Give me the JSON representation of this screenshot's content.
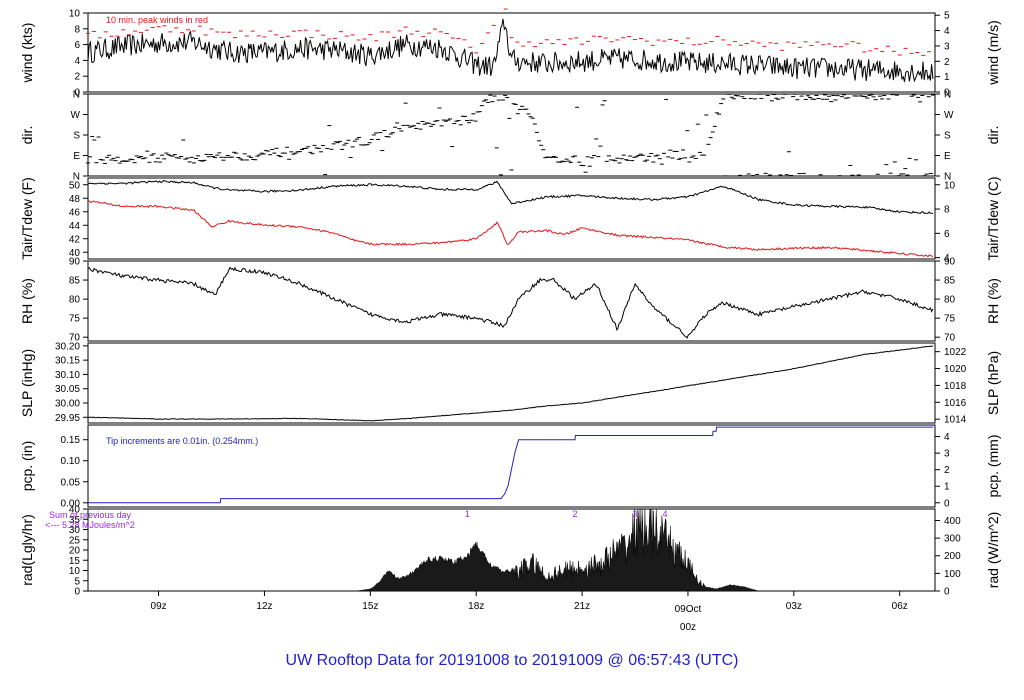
{
  "title": "UW Rooftop Data for 20191008  to  20191009 @ 06:57:43  (UTC)",
  "colors": {
    "black": "#000000",
    "red": "#e31a1c",
    "blue": "#2020c8",
    "purple": "#a020f0",
    "title": "#1f1fd0"
  },
  "time_axis": {
    "labels": [
      "09z",
      "12z",
      "15z",
      "18z",
      "21z",
      "09Oct",
      "03z",
      "06z"
    ],
    "label_positions_h": [
      2,
      5,
      8,
      11,
      14,
      17,
      20,
      23
    ],
    "day_label": "09Oct",
    "day_sublabel": "00z",
    "start": "2019-10-08 07:00 UTC",
    "end": "2019-10-09 06:57 UTC"
  },
  "chart_data": [
    {
      "id": "wind",
      "type": "line",
      "ylabel": "wind (kts)",
      "ylabel_right": "wind (m/s)",
      "ylim": [
        0,
        10
      ],
      "yticks": [
        "0",
        "2",
        "4",
        "6",
        "8",
        "10"
      ],
      "yticks_right": [
        "0",
        "1",
        "2",
        "3",
        "4",
        "5"
      ],
      "annotation": "10 min. peak winds in red",
      "series": [
        {
          "name": "wind",
          "color": "#000000",
          "x": [
            0,
            1,
            2,
            3,
            4,
            5,
            6,
            7,
            8,
            9,
            10,
            11,
            11.5,
            11.8,
            12,
            13,
            14,
            15,
            16,
            17,
            18,
            19,
            20,
            21,
            22,
            23,
            23.95
          ],
          "values": [
            5.0,
            5.8,
            6.2,
            6.3,
            5.0,
            5.0,
            5.5,
            5.3,
            4.6,
            6.0,
            5.6,
            3.4,
            3.2,
            9.0,
            4.0,
            3.6,
            3.9,
            4.2,
            4.0,
            3.7,
            3.6,
            3.4,
            3.0,
            3.0,
            2.8,
            2.7,
            2.5
          ]
        },
        {
          "name": "peak",
          "color": "#e31a1c",
          "x": [
            0,
            1,
            2,
            3,
            4,
            5,
            6,
            7,
            8,
            9,
            10,
            11,
            11.8,
            12,
            13,
            14,
            15,
            16,
            17,
            18,
            19,
            20,
            21,
            22,
            23,
            23.95
          ],
          "values": [
            7.0,
            7.6,
            8.0,
            8.1,
            7.2,
            7.4,
            7.5,
            7.2,
            6.8,
            7.8,
            7.4,
            5.4,
            10.5,
            6.5,
            6.2,
            6.4,
            6.8,
            6.5,
            6.3,
            6.5,
            6.0,
            5.8,
            6.2,
            5.6,
            5.0,
            5.2
          ]
        }
      ]
    },
    {
      "id": "dir",
      "type": "scatter",
      "ylabel": "dir.",
      "ylabel_right": "dir.",
      "ylim": [
        0,
        360
      ],
      "yticks": [
        "N",
        "E",
        "S",
        "W",
        "N"
      ],
      "yticks_right": [
        "N",
        "E",
        "S",
        "W",
        "N"
      ],
      "series": [
        {
          "name": "direction",
          "color": "#000000",
          "x": [
            0,
            0.5,
            1,
            1.5,
            2,
            2.5,
            3,
            3.5,
            4,
            4.5,
            5,
            5.5,
            6,
            6.5,
            7,
            7.5,
            8,
            8.5,
            9,
            9.5,
            10,
            10.5,
            11,
            11.3,
            11.6,
            11.9,
            12.2,
            12.5,
            13,
            13.5,
            14,
            14.5,
            15,
            15.5,
            16,
            16.5,
            17,
            17.5,
            18,
            18.5,
            19,
            19.5,
            20,
            20.5,
            21,
            21.5,
            22,
            22.5,
            23,
            23.5,
            23.9
          ],
          "values": [
            75,
            70,
            78,
            72,
            80,
            85,
            76,
            82,
            90,
            88,
            95,
            105,
            110,
            120,
            130,
            145,
            160,
            190,
            210,
            220,
            230,
            240,
            260,
            330,
            350,
            355,
            300,
            290,
            70,
            80,
            60,
            90,
            70,
            85,
            75,
            95,
            80,
            90,
            355,
            350,
            360,
            345,
            355,
            350,
            345,
            358,
            350,
            355,
            352,
            340,
            356
          ]
        }
      ]
    },
    {
      "id": "temp",
      "type": "line",
      "ylabel": "Tair/Tdew (F)",
      "ylabel_right": "Tair/Tdew (C)",
      "ylim": [
        39,
        51
      ],
      "yticks": [
        "40",
        "42",
        "44",
        "46",
        "48",
        "50"
      ],
      "yticks_right": [
        "4",
        "6",
        "8",
        "10"
      ],
      "series": [
        {
          "name": "Tair",
          "color": "#000000",
          "x": [
            0,
            1,
            2,
            3,
            3.5,
            4,
            5,
            6,
            7,
            8,
            9,
            10,
            11,
            11.6,
            12,
            13,
            14,
            15,
            16,
            17,
            18,
            19,
            20,
            21,
            22,
            23,
            23.95
          ],
          "values": [
            50.2,
            50.2,
            50.5,
            50.3,
            49.6,
            49.2,
            49.0,
            49.2,
            49.8,
            50.0,
            49.8,
            49.3,
            49.3,
            50.4,
            47.2,
            48.2,
            48.4,
            48.0,
            47.8,
            48.2,
            49.8,
            47.8,
            47.0,
            46.8,
            46.7,
            46.0,
            45.8
          ]
        },
        {
          "name": "Tdew",
          "color": "#e31a1c",
          "x": [
            0,
            1,
            2,
            3,
            3.5,
            4,
            5,
            6,
            7,
            7.5,
            8,
            9,
            10,
            11,
            11.6,
            11.9,
            12.2,
            13,
            13.5,
            14,
            15,
            16,
            17,
            18,
            19,
            20,
            21,
            22,
            23,
            23.95
          ],
          "values": [
            47.6,
            46.8,
            46.8,
            46.2,
            43.8,
            44.6,
            44.0,
            43.8,
            42.8,
            41.8,
            41.2,
            41.2,
            41.4,
            42.0,
            44.4,
            41.0,
            43.0,
            43.2,
            42.6,
            43.6,
            42.5,
            42.2,
            41.8,
            40.8,
            40.4,
            40.6,
            40.7,
            40.3,
            39.8,
            39.4
          ]
        }
      ]
    },
    {
      "id": "rh",
      "type": "line",
      "ylabel": "RH (%)",
      "ylabel_right": "RH (%)",
      "ylim": [
        69,
        90
      ],
      "yticks": [
        "70",
        "75",
        "80",
        "85",
        "90"
      ],
      "yticks_right": [
        "70",
        "75",
        "80",
        "85",
        "90"
      ],
      "series": [
        {
          "name": "RH",
          "color": "#000000",
          "x": [
            0,
            1,
            2,
            3,
            3.6,
            4,
            5,
            6,
            7,
            8,
            9,
            10,
            11,
            11.8,
            12.2,
            12.8,
            13.2,
            13.8,
            14.4,
            15,
            15.5,
            16,
            16.5,
            17,
            17.5,
            18,
            19,
            20,
            21,
            22,
            23,
            23.95
          ],
          "values": [
            88,
            86,
            85,
            84,
            81,
            88,
            87,
            84,
            80,
            76,
            74,
            76,
            75,
            73,
            80,
            85,
            85,
            80,
            84,
            72,
            84,
            78,
            74,
            70,
            76,
            79,
            76,
            78,
            80,
            82,
            80,
            77
          ]
        }
      ]
    },
    {
      "id": "slp",
      "type": "line",
      "ylabel": "SLP (inHg)",
      "ylabel_right": "SLP (hPa)",
      "ylim": [
        29.93,
        30.21
      ],
      "yticks": [
        "29.95",
        "30.00",
        "30.05",
        "30.10",
        "30.15",
        "30.20"
      ],
      "yticks_right": [
        "1014",
        "1016",
        "1018",
        "1020",
        "1022"
      ],
      "series": [
        {
          "name": "SLP",
          "color": "#000000",
          "x": [
            0,
            2,
            4,
            6,
            7,
            8,
            9,
            10,
            11,
            12,
            13,
            14,
            15,
            16,
            17,
            18,
            19,
            20,
            21,
            22,
            23,
            23.95
          ],
          "values": [
            29.95,
            29.944,
            29.944,
            29.946,
            29.942,
            29.938,
            29.945,
            29.955,
            29.965,
            29.975,
            29.99,
            30.0,
            30.02,
            30.04,
            30.06,
            30.08,
            30.1,
            30.12,
            30.145,
            30.17,
            30.185,
            30.2
          ]
        }
      ]
    },
    {
      "id": "pcp",
      "type": "line",
      "ylabel": "pcp. (in)",
      "ylabel_right": "pcp. (mm)",
      "ylim": [
        -0.01,
        0.185
      ],
      "yticks": [
        "0.00",
        "0.05",
        "0.10",
        "0.15"
      ],
      "yticks_right": [
        "0",
        "1",
        "2",
        "3",
        "4"
      ],
      "annotation": "Tip increments are 0.01in. (0.254mm.)",
      "series": [
        {
          "name": "precip",
          "color": "#2020c8",
          "x": [
            0,
            3.75,
            3.76,
            11.7,
            11.8,
            11.9,
            12.0,
            12.1,
            12.2,
            13.8,
            13.81,
            17.7,
            17.71,
            17.8,
            17.81,
            23.95
          ],
          "values": [
            0,
            0,
            0.01,
            0.01,
            0.02,
            0.04,
            0.08,
            0.12,
            0.15,
            0.15,
            0.16,
            0.16,
            0.17,
            0.17,
            0.18,
            0.18
          ]
        }
      ]
    },
    {
      "id": "rad",
      "type": "area",
      "ylabel": "rad(Lgly/hr)",
      "ylabel_right": "rad (W/m^2)",
      "ylim": [
        0,
        40
      ],
      "yticks": [
        "0",
        "5",
        "10",
        "15",
        "20",
        "25",
        "30",
        "35",
        "40"
      ],
      "yticks_right": [
        "0",
        "100",
        "200",
        "300",
        "400"
      ],
      "annotation_left": "Sum of previous day",
      "annotation_left_value": "<--- 5.28 MJoules/m^2",
      "markers": [
        "1",
        "2",
        "3",
        "4"
      ],
      "marker_x": [
        10.75,
        13.8,
        15.5,
        16.35
      ],
      "series": [
        {
          "name": "radiation",
          "color": "#000000",
          "x": [
            7.0,
            7.6,
            8.0,
            8.3,
            8.5,
            8.8,
            9.2,
            9.6,
            10.0,
            10.4,
            10.8,
            11.0,
            11.4,
            11.8,
            12.2,
            12.6,
            13.0,
            13.4,
            13.8,
            14.2,
            14.6,
            14.9,
            15.2,
            15.5,
            15.7,
            15.9,
            16.1,
            16.3,
            16.5,
            16.7,
            16.9,
            17.1,
            17.3,
            17.5,
            17.8,
            18.2,
            18.6,
            19.0
          ],
          "values": [
            0,
            0,
            1,
            5,
            10,
            6,
            9,
            15,
            16,
            14,
            18,
            23,
            13,
            9,
            12,
            16,
            8,
            12,
            13,
            14,
            17,
            22,
            26,
            35,
            39,
            38,
            36,
            30,
            28,
            22,
            18,
            12,
            6,
            2,
            1,
            3,
            2,
            0
          ]
        }
      ]
    }
  ]
}
